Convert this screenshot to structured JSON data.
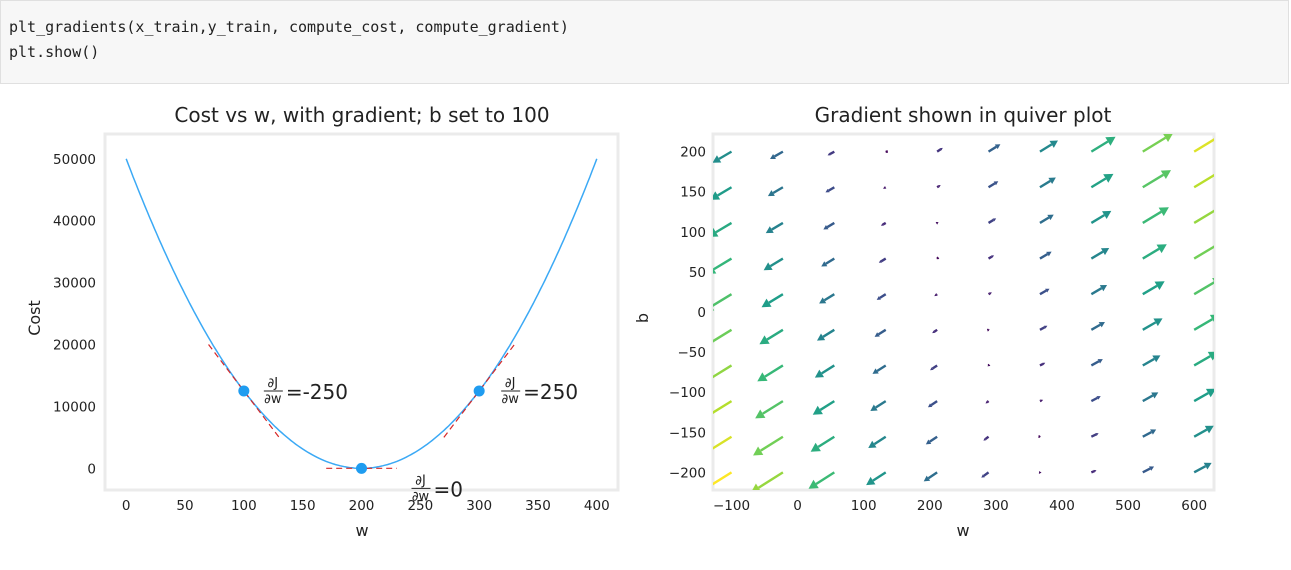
{
  "code": {
    "lines": [
      "plt_gradients(x_train,y_train, compute_cost, compute_gradient)",
      "plt.show()"
    ]
  },
  "chart_data": [
    {
      "type": "line",
      "title": "Cost vs w, with gradient; b set to 100",
      "xlabel": "w",
      "ylabel": "Cost",
      "xlim": [
        -18,
        418
      ],
      "ylim": [
        -3500,
        54000
      ],
      "xticks": [
        0,
        50,
        100,
        150,
        200,
        250,
        300,
        350,
        400
      ],
      "yticks": [
        0,
        10000,
        20000,
        30000,
        40000,
        50000
      ],
      "curve": {
        "formula": "cost = 1.25*(w-200)^2",
        "w_range": [
          0,
          400
        ],
        "color": "#3ba9f5"
      },
      "points": [
        {
          "w": 100,
          "cost": 12500
        },
        {
          "w": 200,
          "cost": 0
        },
        {
          "w": 300,
          "cost": 12500
        }
      ],
      "tangent_color": "#d62728",
      "tangents": [
        {
          "w": 100,
          "cost": 12500,
          "slope": -250,
          "label_prefix": "∂J",
          "label_denom": "∂w",
          "label_value": "=-250"
        },
        {
          "w": 200,
          "cost": 0,
          "slope": 0,
          "label_prefix": "∂J",
          "label_denom": "∂w",
          "label_value": "=0"
        },
        {
          "w": 300,
          "cost": 12500,
          "slope": 250,
          "label_prefix": "∂J",
          "label_denom": "∂w",
          "label_value": "=250"
        }
      ],
      "grid": false
    },
    {
      "type": "quiver",
      "title": "Gradient shown in quiver plot",
      "xlabel": "w",
      "ylabel": "b",
      "xlim": [
        -128,
        630
      ],
      "ylim": [
        -222,
        222
      ],
      "xticks": [
        -100,
        0,
        100,
        200,
        300,
        400,
        500,
        600
      ],
      "yticks": [
        200,
        150,
        100,
        50,
        0,
        -50,
        -100,
        -150,
        -200
      ],
      "grid_w": {
        "start": -100,
        "stop": 600,
        "count": 10
      },
      "grid_b": {
        "start": -200,
        "stop": 200,
        "count": 10
      },
      "colormap": "viridis",
      "vector_field": "gradient of cost with respect to (w, b)",
      "grid": false
    }
  ]
}
